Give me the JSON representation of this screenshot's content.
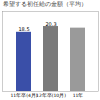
{
  "chart_data": {
    "type": "bar",
    "title": "希望する初任給の金額（平均）",
    "categories": [
      "11年卒(4月)",
      "12年卒(10月)",
      "11年"
    ],
    "values": [
      18.5,
      20.3,
      19.8
    ],
    "colors": [
      "#3a4fa8",
      "#7a7a7a",
      "#9a9a9a"
    ],
    "ylim": [
      0,
      25
    ],
    "yticks": [],
    "tick_labels": "x",
    "data_labels": true,
    "value_labels": [
      "18.5",
      "20.3",
      null
    ]
  }
}
